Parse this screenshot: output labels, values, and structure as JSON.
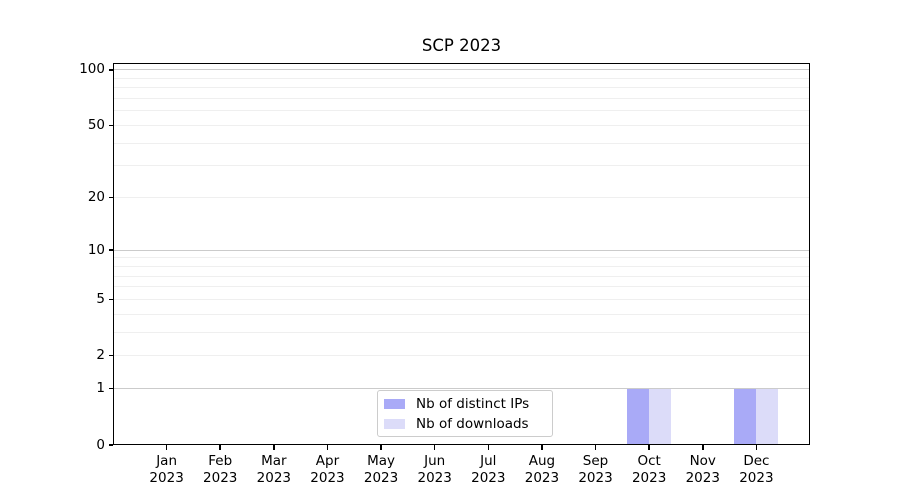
{
  "chart_data": {
    "type": "bar",
    "title": "SCP 2023",
    "categories": [
      "Jan 2023",
      "Feb 2023",
      "Mar 2023",
      "Apr 2023",
      "May 2023",
      "Jun 2023",
      "Jul 2023",
      "Aug 2023",
      "Sep 2023",
      "Oct 2023",
      "Nov 2023",
      "Dec 2023"
    ],
    "series": [
      {
        "name": "Nb of distinct IPs",
        "color": "#a9aaf7",
        "values": [
          0,
          0,
          0,
          0,
          0,
          0,
          0,
          0,
          0,
          1,
          0,
          1
        ]
      },
      {
        "name": "Nb of downloads",
        "color": "#dcdcf9",
        "values": [
          0,
          0,
          0,
          0,
          0,
          0,
          0,
          0,
          0,
          1,
          0,
          1
        ]
      }
    ],
    "xlabel": "",
    "ylabel": "",
    "yscale": "log1p",
    "y_tick_labels": [
      0,
      1,
      2,
      5,
      10,
      20,
      50,
      100
    ],
    "y_minor_gridlines": [
      2,
      3,
      4,
      5,
      6,
      7,
      8,
      9,
      20,
      30,
      40,
      50,
      60,
      70,
      80,
      90
    ],
    "y_major_gridlines": [
      1,
      10,
      100
    ],
    "ylim": [
      0,
      109
    ],
    "grid": "horizontal major+minor",
    "legend_position": "lower center inside axes"
  },
  "colors": {
    "background": "#ffffff",
    "bar_distinct_ips": "#a9aaf7",
    "bar_downloads": "#dcdcf9",
    "grid_major": "#cbcbcb",
    "grid_minor": "#efefef",
    "axis": "#000000",
    "legend_border": "#cccccc"
  }
}
